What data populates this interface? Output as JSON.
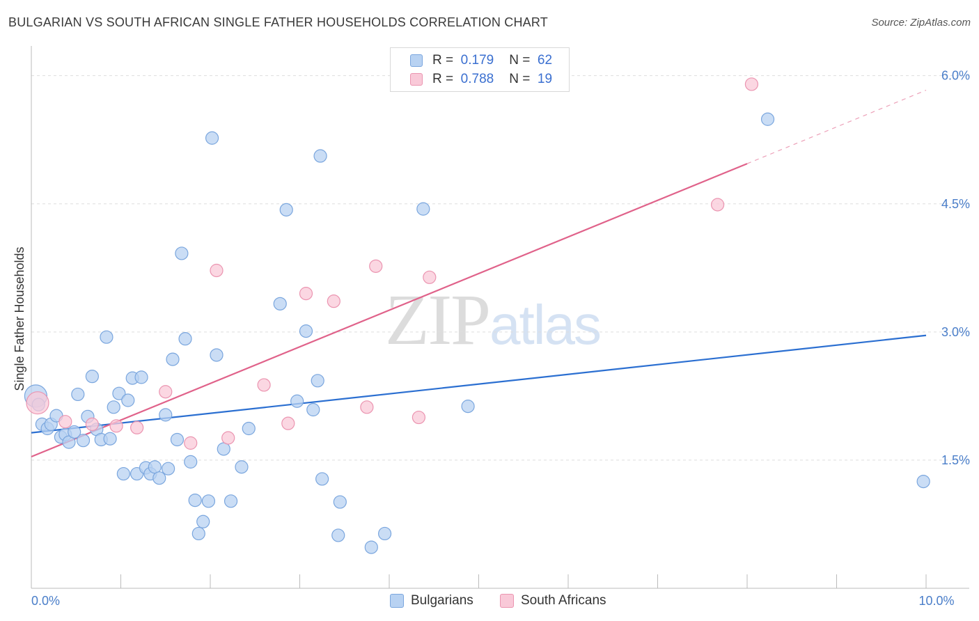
{
  "title": "BULGARIAN VS SOUTH AFRICAN SINGLE FATHER HOUSEHOLDS CORRELATION CHART",
  "source": "Source: ZipAtlas.com",
  "watermark": {
    "part1": "ZIP",
    "part2": "atlas"
  },
  "legend": {
    "rows": [
      {
        "r_label": "R =",
        "r_value": "0.179",
        "n_label": "N =",
        "n_value": "62"
      },
      {
        "r_label": "R =",
        "r_value": "0.788",
        "n_label": "N =",
        "n_value": "19"
      }
    ]
  },
  "bottom_legend": {
    "series1": "Bulgarians",
    "series2": "South Africans"
  },
  "colors": {
    "blue_fill": "#b8d2f2",
    "blue_stroke": "#7aa6de",
    "blue_line": "#2b6fd1",
    "pink_fill": "#f9c9d8",
    "pink_stroke": "#eb94b0",
    "pink_line": "#e0628a",
    "tick": "#4a7ec9",
    "grid": "#dddddd"
  },
  "chart_data": {
    "type": "scatter",
    "title": "BULGARIAN VS SOUTH AFRICAN SINGLE FATHER HOUSEHOLDS CORRELATION CHART",
    "xlabel": "",
    "ylabel": "Single Father Households",
    "xlim": [
      0,
      10
    ],
    "ylim": [
      0,
      6.25
    ],
    "x_tick_labels": [
      {
        "value": 0,
        "label": "0.0%"
      },
      {
        "value": 10,
        "label": "10.0%"
      }
    ],
    "y_ticks": [
      {
        "value": 1.5,
        "label": "1.5%"
      },
      {
        "value": 3.0,
        "label": "3.0%"
      },
      {
        "value": 4.5,
        "label": "4.5%"
      },
      {
        "value": 6.0,
        "label": "6.0%"
      }
    ],
    "series": [
      {
        "name": "Bulgarians",
        "R": 0.179,
        "N": 62,
        "trend": {
          "x0": 0,
          "y0": 1.82,
          "x1": 10,
          "y1": 2.96
        },
        "points": [
          [
            0.05,
            2.25
          ],
          [
            0.08,
            2.15
          ],
          [
            0.12,
            1.92
          ],
          [
            0.18,
            1.87
          ],
          [
            0.22,
            1.92
          ],
          [
            0.28,
            2.02
          ],
          [
            0.33,
            1.77
          ],
          [
            0.38,
            1.8
          ],
          [
            0.42,
            1.71
          ],
          [
            0.48,
            1.83
          ],
          [
            0.52,
            2.27
          ],
          [
            0.58,
            1.73
          ],
          [
            0.63,
            2.01
          ],
          [
            0.68,
            2.48
          ],
          [
            0.73,
            1.86
          ],
          [
            0.78,
            1.74
          ],
          [
            0.84,
            2.94
          ],
          [
            0.88,
            1.75
          ],
          [
            0.92,
            2.12
          ],
          [
            0.98,
            2.28
          ],
          [
            1.03,
            1.34
          ],
          [
            1.08,
            2.2
          ],
          [
            1.13,
            2.46
          ],
          [
            1.18,
            1.34
          ],
          [
            1.23,
            2.47
          ],
          [
            1.28,
            1.41
          ],
          [
            1.33,
            1.34
          ],
          [
            1.38,
            1.42
          ],
          [
            1.43,
            1.29
          ],
          [
            1.5,
            2.03
          ],
          [
            1.53,
            1.4
          ],
          [
            1.58,
            2.68
          ],
          [
            1.63,
            1.74
          ],
          [
            1.68,
            3.92
          ],
          [
            1.72,
            2.92
          ],
          [
            1.78,
            1.48
          ],
          [
            1.83,
            1.03
          ],
          [
            1.87,
            0.64
          ],
          [
            1.92,
            0.78
          ],
          [
            1.98,
            1.02
          ],
          [
            2.02,
            5.27
          ],
          [
            2.07,
            2.73
          ],
          [
            2.15,
            1.63
          ],
          [
            2.23,
            1.02
          ],
          [
            2.35,
            1.42
          ],
          [
            2.43,
            1.87
          ],
          [
            2.78,
            3.33
          ],
          [
            2.85,
            4.43
          ],
          [
            2.97,
            2.19
          ],
          [
            3.07,
            3.01
          ],
          [
            3.15,
            2.09
          ],
          [
            3.2,
            2.43
          ],
          [
            3.23,
            5.06
          ],
          [
            3.25,
            1.28
          ],
          [
            3.43,
            0.62
          ],
          [
            3.45,
            1.01
          ],
          [
            3.8,
            0.48
          ],
          [
            3.95,
            0.64
          ],
          [
            4.38,
            4.44
          ],
          [
            4.88,
            2.13
          ],
          [
            8.23,
            5.49
          ],
          [
            9.97,
            1.25
          ]
        ]
      },
      {
        "name": "South Africans",
        "R": 0.788,
        "N": 19,
        "trend": {
          "x0": 0,
          "y0": 1.54,
          "x1": 8.0,
          "y1": 4.97,
          "dash_x1": 10,
          "dash_y1": 5.83
        },
        "points": [
          [
            0.07,
            2.17
          ],
          [
            0.38,
            1.95
          ],
          [
            0.68,
            1.92
          ],
          [
            0.95,
            1.9
          ],
          [
            1.18,
            1.88
          ],
          [
            1.5,
            2.3
          ],
          [
            1.78,
            1.7
          ],
          [
            2.07,
            3.72
          ],
          [
            2.2,
            1.76
          ],
          [
            2.6,
            2.38
          ],
          [
            2.87,
            1.93
          ],
          [
            3.07,
            3.45
          ],
          [
            3.38,
            3.36
          ],
          [
            3.75,
            2.12
          ],
          [
            3.85,
            3.77
          ],
          [
            4.33,
            2.0
          ],
          [
            4.45,
            3.64
          ],
          [
            7.67,
            4.49
          ],
          [
            8.05,
            5.9
          ]
        ]
      }
    ]
  }
}
